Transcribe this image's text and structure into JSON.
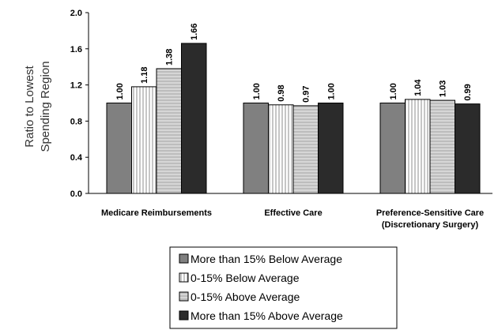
{
  "chart_data": {
    "type": "bar",
    "ylabel_lines": [
      "Ratio to Lowest",
      "Spending Region"
    ],
    "ylim": [
      0,
      2.0
    ],
    "y_ticks": [
      "0.0",
      "0.4",
      "0.8",
      "1.2",
      "1.6",
      "2.0"
    ],
    "grid": false,
    "legend_position": "bottom",
    "categories": [
      {
        "lines": [
          "Medicare Reimbursements"
        ]
      },
      {
        "lines": [
          "Effective Care"
        ]
      },
      {
        "lines": [
          "Preference-Sensitive Care",
          "(Discretionary Surgery)"
        ]
      }
    ],
    "series": [
      {
        "name": "More than 15% Below Average",
        "values": [
          1.0,
          1.0,
          1.0
        ],
        "labels": [
          "1.00",
          "1.00",
          "1.00"
        ],
        "pattern": "solid",
        "color": "#808080"
      },
      {
        "name": "0-15% Below Average",
        "values": [
          1.18,
          0.98,
          1.04
        ],
        "labels": [
          "1.18",
          "0.98",
          "1.04"
        ],
        "pattern": "vertical-lines",
        "color": "#ffffff"
      },
      {
        "name": "0-15% Above Average",
        "values": [
          1.38,
          0.97,
          1.03
        ],
        "labels": [
          "1.38",
          "0.97",
          "1.03"
        ],
        "pattern": "horizontal-lines",
        "color": "#a6a6a6"
      },
      {
        "name": "More than 15% Above Average",
        "values": [
          1.66,
          1.0,
          0.99
        ],
        "labels": [
          "1.66",
          "1.00",
          "0.99"
        ],
        "pattern": "solid",
        "color": "#2b2b2b"
      }
    ]
  }
}
